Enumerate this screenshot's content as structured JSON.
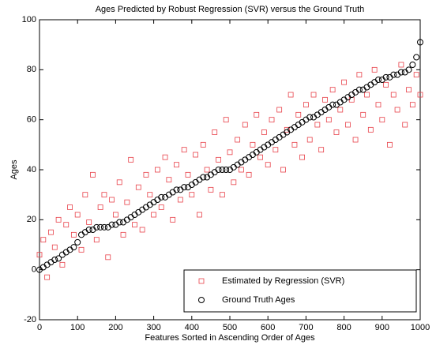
{
  "chart_data": {
    "type": "scatter",
    "title": "Ages Predicted by Robust Regression (SVR) versus the Ground Truth",
    "x_label": "Features Sorted in Ascending Order of Ages",
    "y_label": "Ages",
    "x": [
      0,
      10,
      20,
      30,
      40,
      50,
      60,
      70,
      80,
      90,
      100,
      110,
      120,
      130,
      140,
      150,
      160,
      170,
      180,
      190,
      200,
      210,
      220,
      230,
      240,
      250,
      260,
      270,
      280,
      290,
      300,
      310,
      320,
      330,
      340,
      350,
      360,
      370,
      380,
      390,
      400,
      410,
      420,
      430,
      440,
      450,
      460,
      470,
      480,
      490,
      500,
      510,
      520,
      530,
      540,
      550,
      560,
      570,
      580,
      590,
      600,
      610,
      620,
      630,
      640,
      650,
      660,
      670,
      680,
      690,
      700,
      710,
      720,
      730,
      740,
      750,
      760,
      770,
      780,
      790,
      800,
      810,
      820,
      830,
      840,
      850,
      860,
      870,
      880,
      890,
      900,
      910,
      920,
      930,
      940,
      950,
      960,
      970,
      980,
      990,
      1000
    ],
    "series": [
      {
        "name": "Estimated by Regression (SVR)",
        "color": "#e8424a",
        "marker": "square",
        "values": [
          6,
          12,
          -3,
          15,
          9,
          20,
          2,
          18,
          25,
          14,
          22,
          8,
          30,
          19,
          38,
          12,
          25,
          30,
          5,
          28,
          22,
          35,
          14,
          27,
          44,
          18,
          33,
          16,
          38,
          30,
          22,
          40,
          25,
          45,
          36,
          20,
          42,
          28,
          48,
          38,
          30,
          46,
          22,
          50,
          40,
          32,
          55,
          44,
          30,
          60,
          47,
          35,
          52,
          40,
          58,
          38,
          50,
          62,
          45,
          55,
          42,
          60,
          48,
          64,
          40,
          56,
          70,
          50,
          62,
          45,
          66,
          52,
          70,
          58,
          48,
          68,
          60,
          72,
          55,
          64,
          75,
          58,
          68,
          52,
          78,
          62,
          70,
          56,
          80,
          66,
          60,
          74,
          50,
          70,
          64,
          82,
          58,
          72,
          66,
          78,
          70
        ]
      },
      {
        "name": "Ground Truth Ages",
        "color": "#000000",
        "marker": "circle",
        "values": [
          0,
          1,
          2,
          3,
          4,
          4.5,
          6,
          7,
          8,
          9,
          11,
          14,
          15,
          16,
          16,
          17,
          17,
          17,
          17,
          18,
          18,
          19,
          19,
          20,
          21,
          22,
          23,
          24,
          25,
          26,
          27,
          28,
          29,
          29,
          30,
          31,
          32,
          32,
          33,
          33,
          34,
          35,
          36,
          37,
          37,
          38,
          39,
          40,
          40,
          40,
          40,
          41,
          42,
          43,
          44,
          45,
          46,
          47,
          48,
          49,
          50,
          51,
          52,
          53,
          54,
          55,
          56,
          57,
          58,
          59,
          60,
          61,
          61,
          62,
          63,
          64,
          65,
          66,
          66,
          67,
          68,
          69,
          70,
          71,
          72,
          72,
          73,
          74,
          75,
          76,
          76,
          77,
          77,
          78,
          78,
          79,
          79,
          80,
          82,
          85,
          91
        ]
      }
    ],
    "xlim": [
      0,
      1000
    ],
    "xticks": [
      0,
      100,
      200,
      300,
      400,
      500,
      600,
      700,
      800,
      900,
      1000
    ],
    "ylim": [
      -20,
      100
    ],
    "yticks": [
      -20,
      0,
      20,
      40,
      60,
      80,
      100
    ],
    "legend": "lower right"
  }
}
